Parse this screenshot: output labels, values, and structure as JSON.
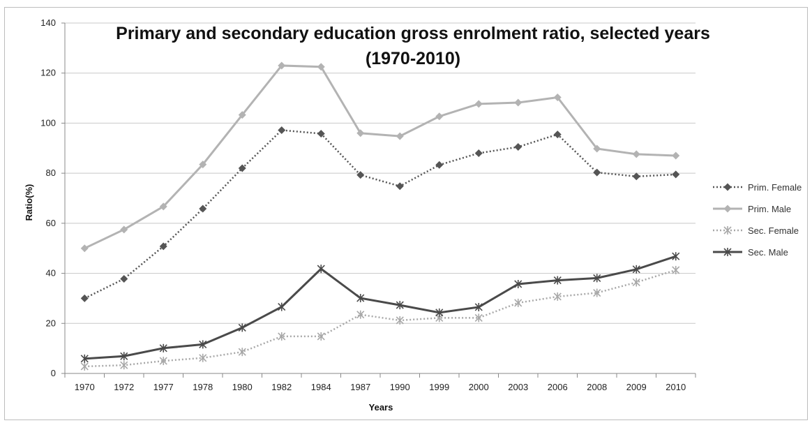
{
  "chart_data": {
    "type": "line",
    "title_lines": [
      "Primary and secondary education gross enrolment ratio, selected years",
      "(1970-2010)"
    ],
    "xlabel": "Years",
    "ylabel": "Ratio(%)",
    "ylim": [
      0,
      140
    ],
    "yticks": [
      0,
      20,
      40,
      60,
      80,
      100,
      120,
      140
    ],
    "grid": "horizontal",
    "legend_position": "right",
    "categories": [
      "1970",
      "1972",
      "1977",
      "1978",
      "1980",
      "1982",
      "1984",
      "1987",
      "1990",
      "1999",
      "2000",
      "2003",
      "2006",
      "2008",
      "2009",
      "2010"
    ],
    "series": [
      {
        "name": "Prim. Female",
        "color": "#555555",
        "style": "dotted",
        "marker": "diamond",
        "values": [
          30,
          37.8,
          50.8,
          65.8,
          82,
          97.2,
          95.8,
          79.3,
          74.8,
          83.3,
          88,
          90.5,
          95.5,
          80.3,
          78.7,
          79.5
        ]
      },
      {
        "name": "Prim. Male",
        "color": "#b3b3b3",
        "style": "solid",
        "marker": "diamond",
        "values": [
          50,
          57.5,
          66.7,
          83.5,
          103.3,
          123,
          122.5,
          96,
          94.8,
          102.7,
          107.7,
          108.2,
          110.3,
          89.8,
          87.6,
          87
        ]
      },
      {
        "name": "Sec. Female",
        "color": "#a8a8a8",
        "style": "dotted",
        "marker": "asterisk",
        "values": [
          2.8,
          3.3,
          5,
          6.2,
          8.6,
          14.8,
          14.8,
          23.5,
          21.2,
          22.2,
          22.2,
          28.2,
          30.7,
          32.2,
          36.4,
          41.3
        ]
      },
      {
        "name": "Sec. Male",
        "color": "#4a4a4a",
        "style": "solid",
        "marker": "asterisk",
        "values": [
          5.9,
          6.9,
          10.1,
          11.6,
          18.3,
          26.6,
          41.8,
          30.1,
          27.3,
          24.3,
          26.5,
          35.7,
          37.2,
          38.1,
          41.6,
          46.8
        ]
      }
    ]
  }
}
